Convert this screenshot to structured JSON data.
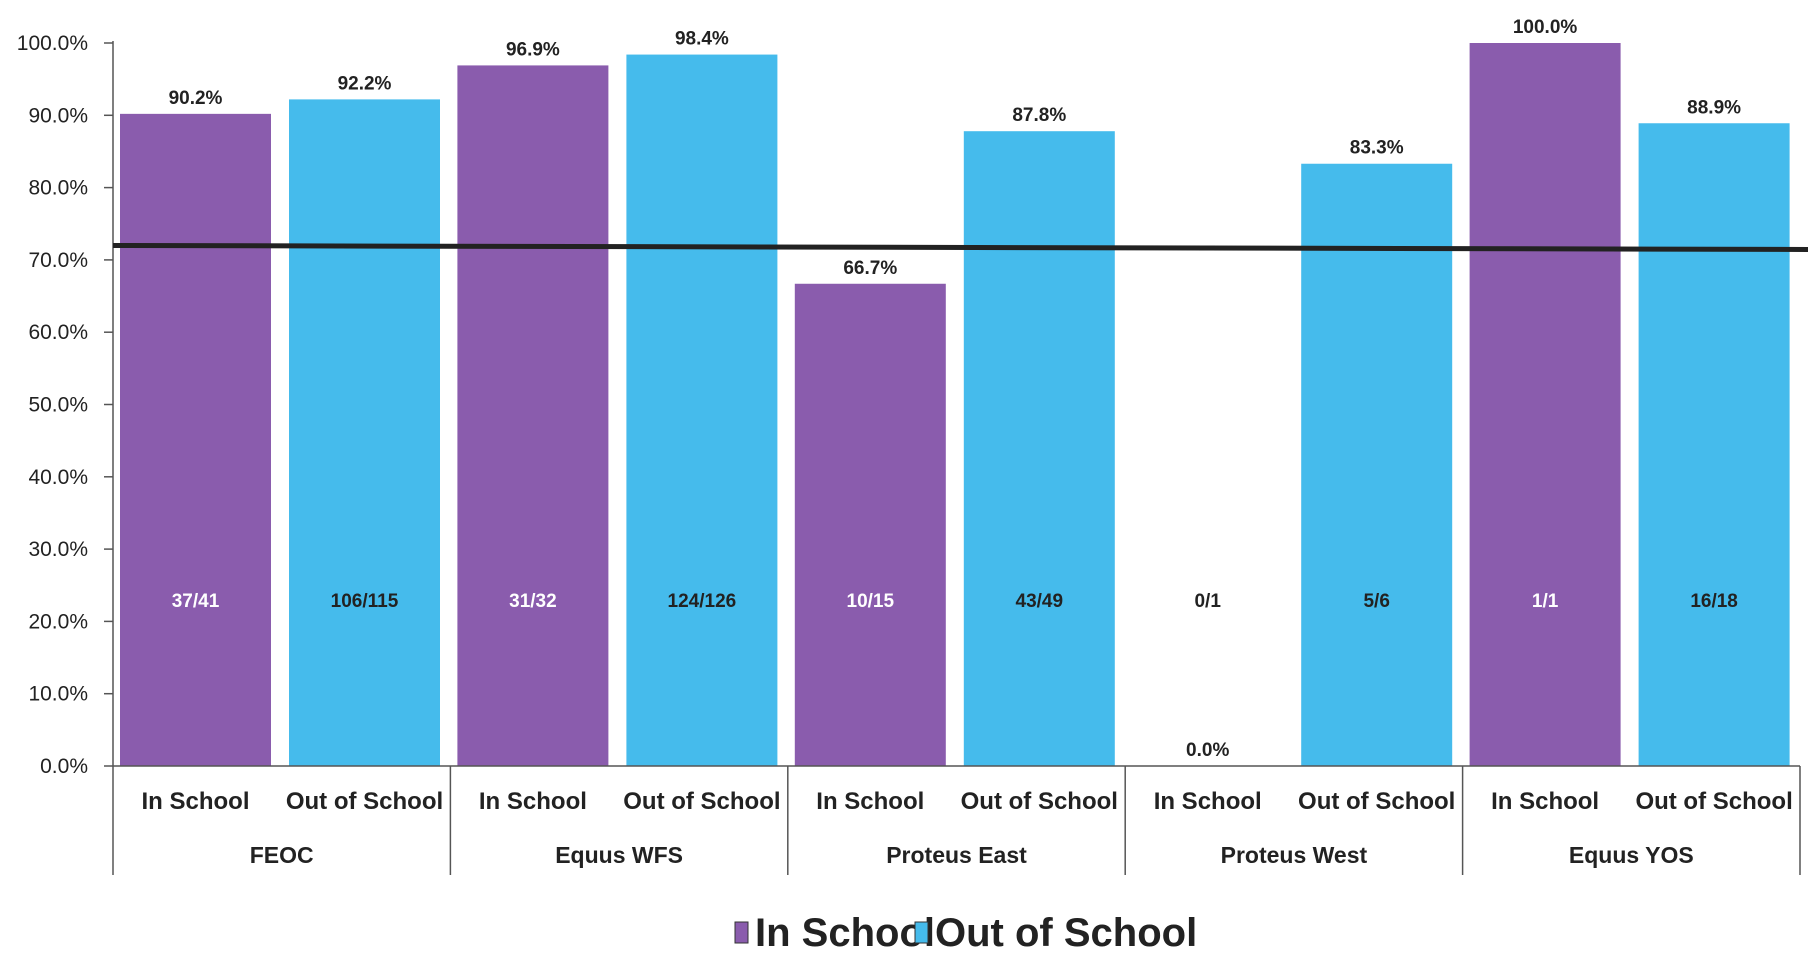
{
  "chart_data": {
    "type": "bar",
    "groups": [
      "FEOC",
      "Equus WFS",
      "Proteus East",
      "Proteus West",
      "Equus YOS"
    ],
    "subcategories": [
      "In School",
      "Out of School"
    ],
    "y_ticks": [
      "0.0%",
      "10.0%",
      "20.0%",
      "30.0%",
      "40.0%",
      "50.0%",
      "60.0%",
      "70.0%",
      "80.0%",
      "90.0%",
      "100.0%"
    ],
    "ylim": [
      0,
      100
    ],
    "reference_line": 72,
    "legend_position": "bottom",
    "grid": false,
    "series": [
      {
        "name": "In School",
        "color": "#8a5cad",
        "values": [
          90.2,
          96.9,
          66.7,
          0.0,
          100.0
        ],
        "value_labels": [
          "90.2%",
          "96.9%",
          "66.7%",
          "0.0%",
          "100.0%"
        ],
        "fraction_labels": [
          "37/41",
          "31/32",
          "10/15",
          "0/1",
          "1/1"
        ]
      },
      {
        "name": "Out of School",
        "color": "#45bbec",
        "values": [
          92.2,
          98.4,
          87.8,
          83.3,
          88.9
        ],
        "value_labels": [
          "92.2%",
          "98.4%",
          "87.8%",
          "83.3%",
          "88.9%"
        ],
        "fraction_labels": [
          "106/115",
          "124/126",
          "43/49",
          "5/6",
          "16/18"
        ]
      }
    ]
  }
}
